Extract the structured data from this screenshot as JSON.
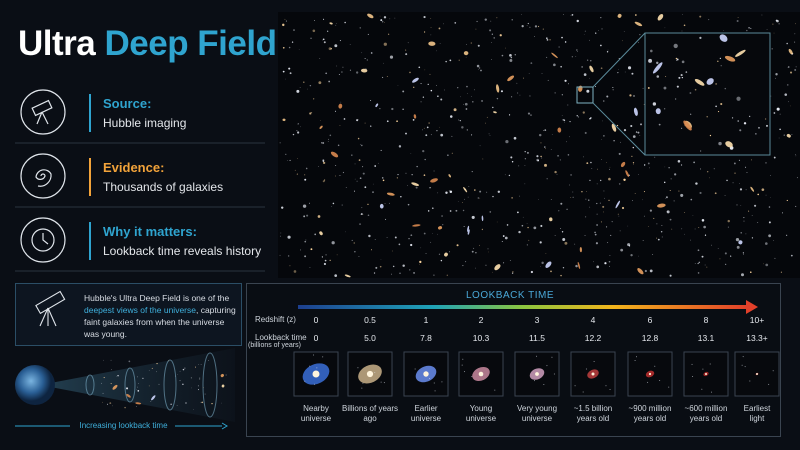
{
  "header": {
    "title_a": "Ultra",
    "title_b": "Deep Field"
  },
  "facts": [
    {
      "label": "Source:",
      "text": "Hubble imaging"
    },
    {
      "label": "Evidence:",
      "text": "Thousands of galaxies"
    },
    {
      "label": "Why it matters:",
      "text": "Lookback time reveals history"
    }
  ],
  "description": {
    "parts": [
      "Hubble's Ultra Deep Field is one of the ",
      "deepest views of the universe",
      ", capturing faint galaxies from when the universe was young."
    ]
  },
  "diagram": {
    "caption": "Increasing lookback time"
  },
  "lookback": {
    "title": "LOOKBACK TIME",
    "redshift_label": "Redshift (z)",
    "time_label": [
      "Lookback time",
      "(billions of years)"
    ],
    "columns": [
      {
        "z": "0",
        "t": "0",
        "caption": [
          "Nearby",
          "universe"
        ]
      },
      {
        "z": "0.5",
        "t": "5.0",
        "caption": [
          "Billions of years",
          "ago"
        ]
      },
      {
        "z": "1",
        "t": "7.8",
        "caption": [
          "Earlier",
          "universe"
        ]
      },
      {
        "z": "2",
        "t": "10.3",
        "caption": [
          "Young",
          "universe"
        ]
      },
      {
        "z": "3",
        "t": "11.5",
        "caption": [
          "Very young",
          "universe"
        ]
      },
      {
        "z": "4",
        "t": "12.2",
        "caption": [
          "~1.5 billion",
          "years old"
        ]
      },
      {
        "z": "6",
        "t": "12.8",
        "caption": [
          "~900 million",
          "years old"
        ]
      },
      {
        "z": "8",
        "t": "13.1",
        "caption": [
          "~600 million",
          "years old"
        ]
      },
      {
        "z": "10+",
        "t": "13.3+",
        "caption": [
          "Earliest",
          "light"
        ]
      }
    ]
  }
}
